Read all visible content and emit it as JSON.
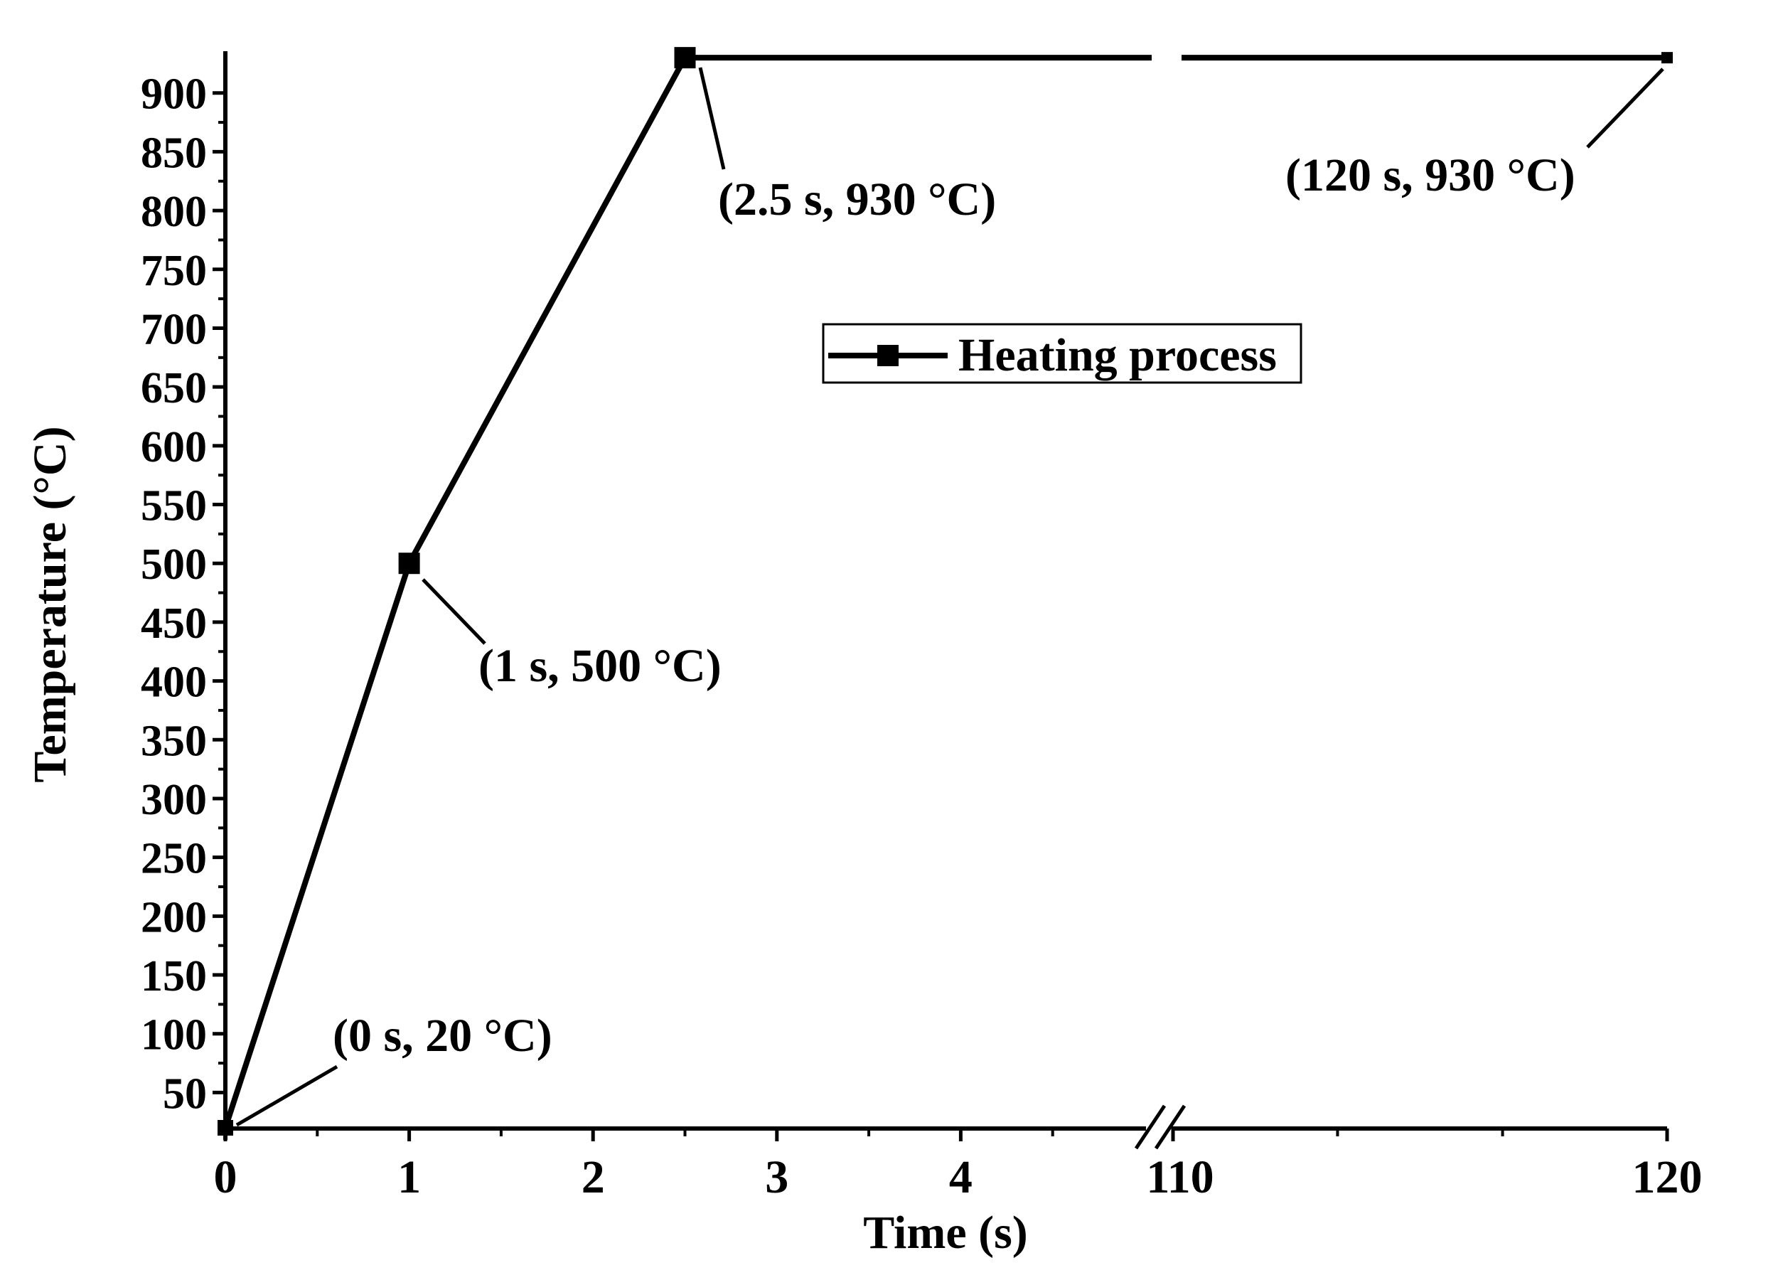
{
  "chart_data": {
    "type": "line",
    "title": "",
    "xlabel": "Time (s)",
    "ylabel": "Temperature (°C)",
    "x_axis_break": {
      "from": 5,
      "to": 110
    },
    "x_segments": [
      {
        "range": [
          0,
          5
        ],
        "ticks": [
          0,
          1,
          2,
          3,
          4
        ],
        "tick_labels": [
          "0",
          "1",
          "2",
          "3",
          "4"
        ]
      },
      {
        "range": [
          110,
          120
        ],
        "ticks": [
          110,
          120
        ],
        "tick_labels": [
          "110",
          "120"
        ]
      }
    ],
    "ylim": [
      20,
      960
    ],
    "y_ticks": [
      50,
      100,
      150,
      200,
      250,
      300,
      350,
      400,
      450,
      500,
      550,
      600,
      650,
      700,
      750,
      800,
      850,
      900
    ],
    "y_tick_labels": [
      "50",
      "100",
      "150",
      "200",
      "250",
      "300",
      "350",
      "400",
      "450",
      "500",
      "550",
      "600",
      "650",
      "700",
      "750",
      "800",
      "850",
      "900"
    ],
    "series": [
      {
        "name": "Heating process",
        "color": "#000000",
        "marker": "square",
        "x": [
          0,
          1,
          2.5,
          120
        ],
        "y": [
          20,
          500,
          930,
          930
        ]
      }
    ],
    "annotations": [
      {
        "text": "(0 s, 20 °C)",
        "x": 0,
        "y": 20
      },
      {
        "text": "(1 s, 500 °C)",
        "x": 1,
        "y": 500
      },
      {
        "text": "(2.5 s, 930 °C)",
        "x": 2.5,
        "y": 930
      },
      {
        "text": "(120 s, 930 °C)",
        "x": 120,
        "y": 930
      }
    ],
    "legend": {
      "position": "top-center",
      "entries": [
        "Heating process"
      ]
    },
    "grid": false
  }
}
